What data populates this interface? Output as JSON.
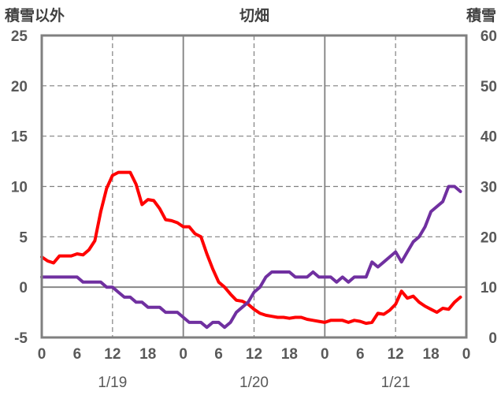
{
  "chart_data": {
    "type": "line",
    "title": "切畑",
    "left_axis_title": "積雪以外",
    "right_axis_title": "積雪",
    "y_left": {
      "min": -5,
      "max": 25,
      "step": 5,
      "ticks": [
        "-5",
        "0",
        "5",
        "10",
        "15",
        "20",
        "25"
      ]
    },
    "y_right": {
      "min": 0,
      "max": 60,
      "step": 10,
      "ticks": [
        "0",
        "10",
        "20",
        "30",
        "40",
        "50",
        "60"
      ]
    },
    "x_hours": {
      "min": 0,
      "max": 72
    },
    "x_tick_labels": [
      {
        "hour": 0,
        "label": "0"
      },
      {
        "hour": 6,
        "label": "6"
      },
      {
        "hour": 12,
        "label": "12"
      },
      {
        "hour": 18,
        "label": "18"
      },
      {
        "hour": 24,
        "label": "0"
      },
      {
        "hour": 30,
        "label": "6"
      },
      {
        "hour": 36,
        "label": "12"
      },
      {
        "hour": 42,
        "label": "18"
      },
      {
        "hour": 48,
        "label": "0"
      },
      {
        "hour": 54,
        "label": "6"
      },
      {
        "hour": 60,
        "label": "12"
      },
      {
        "hour": 66,
        "label": "18"
      },
      {
        "hour": 72,
        "label": "0"
      }
    ],
    "date_labels": [
      {
        "hour": 12,
        "label": "1/19"
      },
      {
        "hour": 36,
        "label": "1/20"
      },
      {
        "hour": 60,
        "label": "1/21"
      }
    ],
    "day_boundaries": [
      24,
      48
    ],
    "noon_lines": [
      12,
      36,
      60
    ],
    "grid": true,
    "colors": {
      "temperature": "#ff0000",
      "snow": "#7030a0",
      "axis": "#808080",
      "grid": "#808080"
    },
    "series": [
      {
        "axis": "left",
        "color": "#ff0000",
        "points": [
          [
            0,
            3.0
          ],
          [
            1,
            2.6
          ],
          [
            2,
            2.4
          ],
          [
            3,
            3.1
          ],
          [
            4,
            3.1
          ],
          [
            5,
            3.1
          ],
          [
            6,
            3.3
          ],
          [
            7,
            3.2
          ],
          [
            8,
            3.7
          ],
          [
            9,
            4.6
          ],
          [
            10,
            7.5
          ],
          [
            11,
            9.8
          ],
          [
            12,
            11.1
          ],
          [
            13,
            11.4
          ],
          [
            14,
            11.4
          ],
          [
            15,
            11.4
          ],
          [
            16,
            10.2
          ],
          [
            17,
            8.2
          ],
          [
            18,
            8.7
          ],
          [
            19,
            8.6
          ],
          [
            20,
            7.8
          ],
          [
            21,
            6.7
          ],
          [
            22,
            6.6
          ],
          [
            23,
            6.4
          ],
          [
            24,
            6.0
          ],
          [
            25,
            6.0
          ],
          [
            26,
            5.3
          ],
          [
            27,
            5.0
          ],
          [
            28,
            3.3
          ],
          [
            29,
            1.8
          ],
          [
            30,
            0.5
          ],
          [
            31,
            0.0
          ],
          [
            32,
            -0.7
          ],
          [
            33,
            -1.3
          ],
          [
            34,
            -1.4
          ],
          [
            35,
            -1.7
          ],
          [
            36,
            -2.2
          ],
          [
            37,
            -2.6
          ],
          [
            38,
            -2.8
          ],
          [
            39,
            -2.9
          ],
          [
            40,
            -3.0
          ],
          [
            41,
            -3.0
          ],
          [
            42,
            -3.1
          ],
          [
            43,
            -3.0
          ],
          [
            44,
            -3.0
          ],
          [
            45,
            -3.2
          ],
          [
            46,
            -3.3
          ],
          [
            47,
            -3.4
          ],
          [
            48,
            -3.5
          ],
          [
            49,
            -3.3
          ],
          [
            50,
            -3.3
          ],
          [
            51,
            -3.3
          ],
          [
            52,
            -3.5
          ],
          [
            53,
            -3.3
          ],
          [
            54,
            -3.4
          ],
          [
            55,
            -3.6
          ],
          [
            56,
            -3.5
          ],
          [
            57,
            -2.6
          ],
          [
            58,
            -2.7
          ],
          [
            59,
            -2.3
          ],
          [
            60,
            -1.7
          ],
          [
            61,
            -0.4
          ],
          [
            62,
            -1.1
          ],
          [
            63,
            -0.9
          ],
          [
            64,
            -1.5
          ],
          [
            65,
            -1.9
          ],
          [
            66,
            -2.2
          ],
          [
            67,
            -2.5
          ],
          [
            68,
            -2.1
          ],
          [
            69,
            -2.2
          ],
          [
            70,
            -1.5
          ],
          [
            71,
            -1.0
          ]
        ]
      },
      {
        "axis": "right",
        "color": "#7030a0",
        "points": [
          [
            0,
            12
          ],
          [
            1,
            12
          ],
          [
            2,
            12
          ],
          [
            3,
            12
          ],
          [
            4,
            12
          ],
          [
            5,
            12
          ],
          [
            6,
            12
          ],
          [
            7,
            11
          ],
          [
            8,
            11
          ],
          [
            9,
            11
          ],
          [
            10,
            11
          ],
          [
            11,
            10
          ],
          [
            12,
            10
          ],
          [
            13,
            9
          ],
          [
            14,
            8
          ],
          [
            15,
            8
          ],
          [
            16,
            7
          ],
          [
            17,
            7
          ],
          [
            18,
            6
          ],
          [
            19,
            6
          ],
          [
            20,
            6
          ],
          [
            21,
            5
          ],
          [
            22,
            5
          ],
          [
            23,
            5
          ],
          [
            24,
            4
          ],
          [
            25,
            3
          ],
          [
            26,
            3
          ],
          [
            27,
            3
          ],
          [
            28,
            2
          ],
          [
            29,
            3
          ],
          [
            30,
            3
          ],
          [
            31,
            2
          ],
          [
            32,
            3
          ],
          [
            33,
            5
          ],
          [
            34,
            6
          ],
          [
            35,
            7
          ],
          [
            36,
            9
          ],
          [
            37,
            10
          ],
          [
            38,
            12
          ],
          [
            39,
            13
          ],
          [
            40,
            13
          ],
          [
            41,
            13
          ],
          [
            42,
            13
          ],
          [
            43,
            12
          ],
          [
            44,
            12
          ],
          [
            45,
            12
          ],
          [
            46,
            13
          ],
          [
            47,
            12
          ],
          [
            48,
            12
          ],
          [
            49,
            12
          ],
          [
            50,
            11
          ],
          [
            51,
            12
          ],
          [
            52,
            11
          ],
          [
            53,
            12
          ],
          [
            54,
            12
          ],
          [
            55,
            12
          ],
          [
            56,
            15
          ],
          [
            57,
            14
          ],
          [
            58,
            15
          ],
          [
            59,
            16
          ],
          [
            60,
            17
          ],
          [
            61,
            15
          ],
          [
            62,
            17
          ],
          [
            63,
            19
          ],
          [
            64,
            20
          ],
          [
            65,
            22
          ],
          [
            66,
            25
          ],
          [
            67,
            26
          ],
          [
            68,
            27
          ],
          [
            69,
            30
          ],
          [
            70,
            30
          ],
          [
            71,
            29
          ]
        ]
      }
    ]
  }
}
